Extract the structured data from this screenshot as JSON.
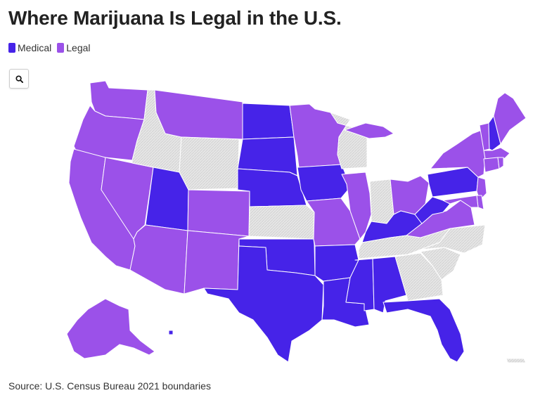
{
  "title": "Where Marijuana Is Legal in the U.S.",
  "legend": [
    {
      "label": "Medical",
      "color": "#4623e8"
    },
    {
      "label": "Legal",
      "color": "#9b51e9"
    }
  ],
  "no_data_color": "#e2e2e2",
  "search_icon": "search-icon",
  "source": "Source: U.S. Census Bureau 2021 boundaries",
  "states": {
    "WA": "legal",
    "OR": "legal",
    "CA": "legal",
    "NV": "legal",
    "ID": "none",
    "MT": "legal",
    "WY": "none",
    "UT": "medical",
    "AZ": "legal",
    "CO": "legal",
    "NM": "legal",
    "ND": "medical",
    "SD": "medical",
    "NE": "medical",
    "KS": "none",
    "OK": "medical",
    "TX": "medical",
    "MN": "legal",
    "IA": "medical",
    "MO": "legal",
    "AR": "medical",
    "LA": "medical",
    "WI": "none",
    "IL": "legal",
    "MI": "legal",
    "IN": "none",
    "OH": "legal",
    "KY": "medical",
    "TN": "none",
    "MS": "medical",
    "AL": "medical",
    "GA": "none",
    "FL": "medical",
    "SC": "none",
    "NC": "none",
    "VA": "legal",
    "WV": "medical",
    "PA": "medical",
    "NY": "legal",
    "VT": "legal",
    "NH": "medical",
    "ME": "legal",
    "MA": "legal",
    "RI": "legal",
    "CT": "legal",
    "NJ": "legal",
    "DE": "legal",
    "MD": "legal",
    "AK": "legal",
    "HI": "medical",
    "PR": "none"
  }
}
